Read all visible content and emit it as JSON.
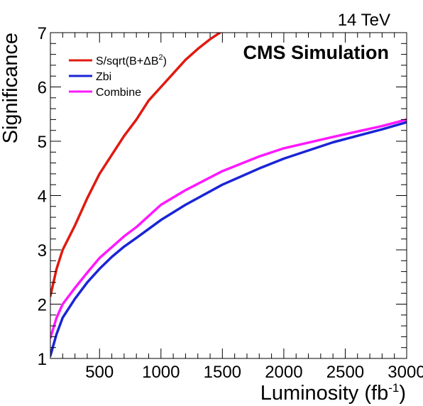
{
  "energy_label": "14 TeV",
  "experiment_label": "CMS Simulation",
  "chart_data": {
    "type": "line",
    "xlabel": "Luminosity (fb",
    "xlabel_sup": "-1",
    "xlabel_close": ")",
    "ylabel": "Significance",
    "xlim": [
      100,
      3000
    ],
    "ylim": [
      1,
      7
    ],
    "xticks": [
      500,
      1000,
      1500,
      2000,
      2500,
      3000
    ],
    "yticks": [
      1,
      2,
      3,
      4,
      5,
      6,
      7
    ],
    "grid": false,
    "legend_position": "top-left",
    "series": [
      {
        "legend_main": "S/sqrt(B+ΔB",
        "legend_sup": "2",
        "legend_close": ")",
        "color": "#e01a10",
        "x": [
          100,
          150,
          200,
          300,
          400,
          500,
          600,
          700,
          800,
          900,
          1000,
          1100,
          1200,
          1300,
          1400,
          1480
        ],
        "y": [
          2.15,
          2.65,
          3.0,
          3.45,
          3.95,
          4.4,
          4.75,
          5.1,
          5.4,
          5.75,
          6.0,
          6.25,
          6.5,
          6.7,
          6.88,
          7.0
        ]
      },
      {
        "legend_main": "Zbi",
        "color": "#1a24d6",
        "x": [
          100,
          150,
          200,
          300,
          400,
          500,
          600,
          700,
          800,
          1000,
          1200,
          1500,
          1800,
          2000,
          2400,
          2800,
          3000
        ],
        "y": [
          1.05,
          1.45,
          1.75,
          2.1,
          2.4,
          2.65,
          2.87,
          3.06,
          3.22,
          3.55,
          3.83,
          4.2,
          4.5,
          4.68,
          4.98,
          5.22,
          5.35
        ]
      },
      {
        "legend_main": "Combine",
        "color": "#ff18ff",
        "x": [
          100,
          150,
          200,
          300,
          400,
          500,
          600,
          700,
          800,
          1000,
          1200,
          1500,
          1800,
          2000,
          2400,
          2800,
          3000
        ],
        "y": [
          1.38,
          1.75,
          2.0,
          2.3,
          2.58,
          2.85,
          3.05,
          3.25,
          3.42,
          3.83,
          4.1,
          4.45,
          4.72,
          4.87,
          5.08,
          5.28,
          5.4
        ]
      }
    ]
  }
}
